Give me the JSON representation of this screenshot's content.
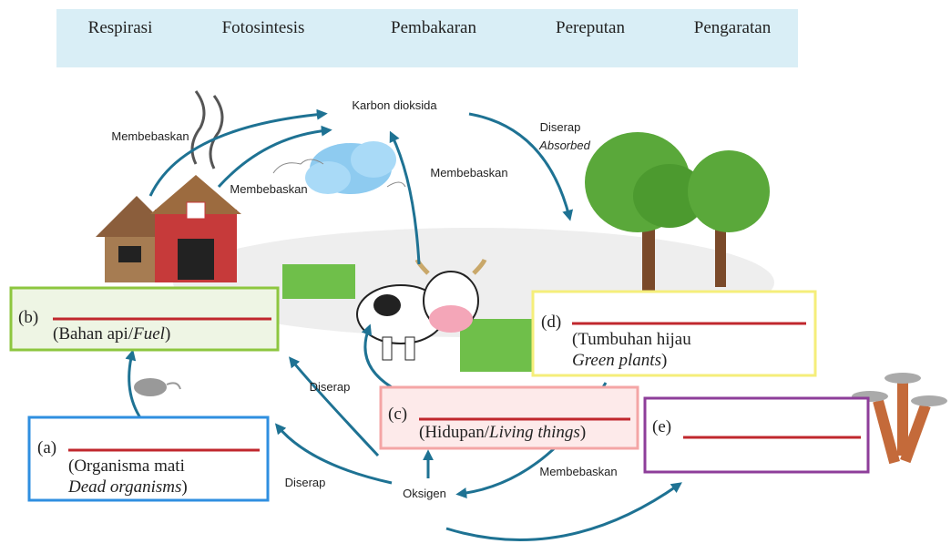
{
  "word_bank": [
    "Respirasi",
    "Fotosintesis",
    "Pembakaran",
    "Pereputan",
    "Pengaratan"
  ],
  "nodes": {
    "carbon_dioxide": "Karbon dioksida",
    "oxygen": "Oksigen"
  },
  "arrow_labels": [
    "Membebaskan",
    "Membebaskan",
    "Membebaskan",
    "Diserap",
    "Absorbed",
    "Diserap",
    "Diserap",
    "Membebaskan"
  ],
  "boxes": {
    "b": {
      "letter": "(b)",
      "line1": [
        "(Bahan api/",
        "Fuel",
        ")"
      ]
    },
    "d": {
      "letter": "(d)",
      "line1": "(Tumbuhan hijau",
      "line2": [
        "Green plants",
        ")"
      ]
    },
    "c": {
      "letter": "(c)",
      "line1": [
        "(Hidupan/",
        "Living things",
        ")"
      ]
    },
    "a": {
      "letter": "(a)",
      "line1": "(Organisma mati",
      "line2": [
        "Dead organisms",
        ")"
      ]
    },
    "e": {
      "letter": "(e)"
    }
  }
}
